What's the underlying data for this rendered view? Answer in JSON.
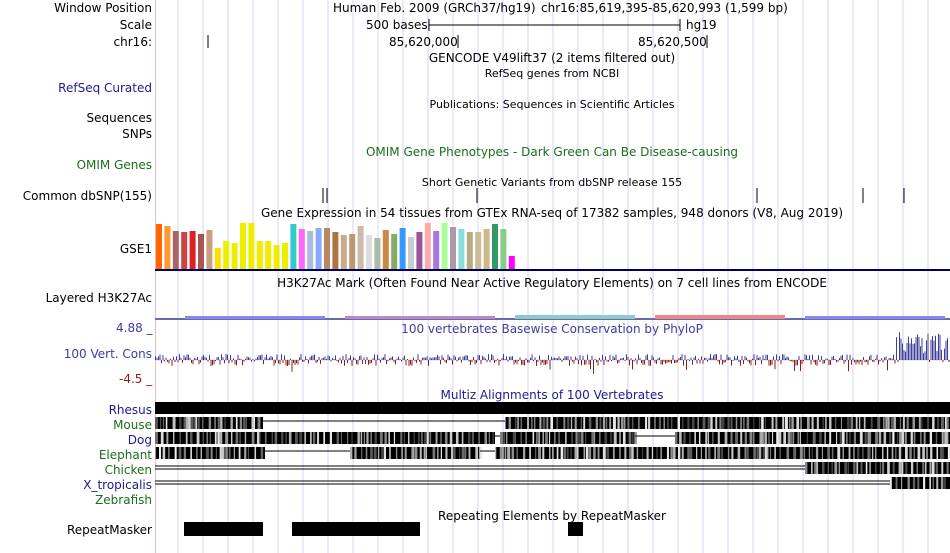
{
  "window_position": {
    "label": "Window Position",
    "assembly": "Human Feb. 2009 (GRCh37/hg19)",
    "coords": "chr16:85,619,395-85,620,993 (1,599 bp)"
  },
  "scale": {
    "label": "Scale",
    "value": "500 bases",
    "assembly": "hg19"
  },
  "chrom": {
    "label": "chr16:",
    "tick1": "85,620,000",
    "tick2": "85,620,500"
  },
  "gencode": {
    "title": "GENCODE V49lift37 (2 items filtered out)"
  },
  "refseq": {
    "label": "RefSeq Curated",
    "title": "RefSeq genes from NCBI"
  },
  "publications": {
    "title": "Publications: Sequences in Scientific Articles"
  },
  "sequences": {
    "label": "Sequences"
  },
  "snps": {
    "label": "SNPs"
  },
  "omim": {
    "label": "OMIM Genes",
    "title": "OMIM Gene Phenotypes - Dark Green Can Be Disease-causing"
  },
  "dbsnp": {
    "label": "Common dbSNP(155)",
    "title": "Short Genetic Variants from dbSNP release 155"
  },
  "gtex": {
    "label": "GSE1",
    "title": "Gene Expression in 54 tissues from GTEx RNA-seq of 17382 samples, 948 donors (V8, Aug 2019)",
    "bars": [
      {
        "c": "#ff6600",
        "v": 0.95
      },
      {
        "c": "#ff9933",
        "v": 0.92
      },
      {
        "c": "#aa6666",
        "v": 0.8
      },
      {
        "c": "#cc4444",
        "v": 0.78
      },
      {
        "c": "#dd2222",
        "v": 0.8
      },
      {
        "c": "#aa5555",
        "v": 0.75
      },
      {
        "c": "#c8a080",
        "v": 0.82
      },
      {
        "c": "#ffdd00",
        "v": 0.45
      },
      {
        "c": "#eeee00",
        "v": 0.6
      },
      {
        "c": "#eeee00",
        "v": 0.55
      },
      {
        "c": "#eeee00",
        "v": 0.98
      },
      {
        "c": "#eeee00",
        "v": 0.98
      },
      {
        "c": "#eeee00",
        "v": 0.6
      },
      {
        "c": "#eeee00",
        "v": 0.6
      },
      {
        "c": "#eeee00",
        "v": 0.52
      },
      {
        "c": "#eeee00",
        "v": 0.55
      },
      {
        "c": "#33cccc",
        "v": 0.95
      },
      {
        "c": "#ff66ff",
        "v": 0.85
      },
      {
        "c": "#aabbdd",
        "v": 0.8
      },
      {
        "c": "#88aaff",
        "v": 0.88
      },
      {
        "c": "#b88866",
        "v": 0.88
      },
      {
        "c": "#aa7744",
        "v": 0.78
      },
      {
        "c": "#ccaa88",
        "v": 0.72
      },
      {
        "c": "#bb9977",
        "v": 0.74
      },
      {
        "c": "#ccbbaa",
        "v": 0.92
      },
      {
        "c": "#dddddd",
        "v": 0.72
      },
      {
        "c": "#aabbaa",
        "v": 0.65
      },
      {
        "c": "#cc8844",
        "v": 0.82
      },
      {
        "c": "#88aa66",
        "v": 0.75
      },
      {
        "c": "#3399ff",
        "v": 0.88
      },
      {
        "c": "#cccccc",
        "v": 0.68
      },
      {
        "c": "#995599",
        "v": 0.78
      },
      {
        "c": "#ffaaaa",
        "v": 0.98
      },
      {
        "c": "#aa77dd",
        "v": 0.8
      },
      {
        "c": "#aaff99",
        "v": 0.98
      },
      {
        "c": "#aa99aa",
        "v": 0.9
      },
      {
        "c": "#88dddd",
        "v": 0.85
      },
      {
        "c": "#bbaa88",
        "v": 0.78
      },
      {
        "c": "#ccbb99",
        "v": 0.78
      },
      {
        "c": "#ccbb88",
        "v": 0.85
      },
      {
        "c": "#339966",
        "v": 0.95
      },
      {
        "c": "#88cc88",
        "v": 0.85
      },
      {
        "c": "#ff00ff",
        "v": 0.28
      }
    ]
  },
  "h3k27ac": {
    "label": "Layered H3K27Ac",
    "title": "H3K27Ac Mark (Often Found Near Active Regulatory Elements) on 7 cell lines from ENCODE"
  },
  "conservation": {
    "label": "100 Vert. Cons",
    "max": "4.88 _",
    "min": "-4.5 _",
    "title": "100 vertebrates Basewise Conservation by PhyloP"
  },
  "multiz": {
    "title": "Multiz Alignments of 100 Vertebrates",
    "species": [
      {
        "name": "Rhesus",
        "color": "#1c1c8c"
      },
      {
        "name": "Mouse",
        "color": "#1c6e1c"
      },
      {
        "name": "Dog",
        "color": "#1c1c8c"
      },
      {
        "name": "Elephant",
        "color": "#1c6e1c"
      },
      {
        "name": "Chicken",
        "color": "#1c6e1c"
      },
      {
        "name": "X_tropicalis",
        "color": "#1c1c8c"
      },
      {
        "name": "Zebrafish",
        "color": "#1c6e1c"
      }
    ]
  },
  "repeatmasker": {
    "label": "RepeatMasker",
    "title": "Repeating Elements by RepeatMasker"
  },
  "colors": {
    "blue_label": "#1c1c8c",
    "green_label": "#1c6e1c",
    "cons_pos": "#3d3d9c",
    "cons_neg": "#8c1c1c"
  }
}
